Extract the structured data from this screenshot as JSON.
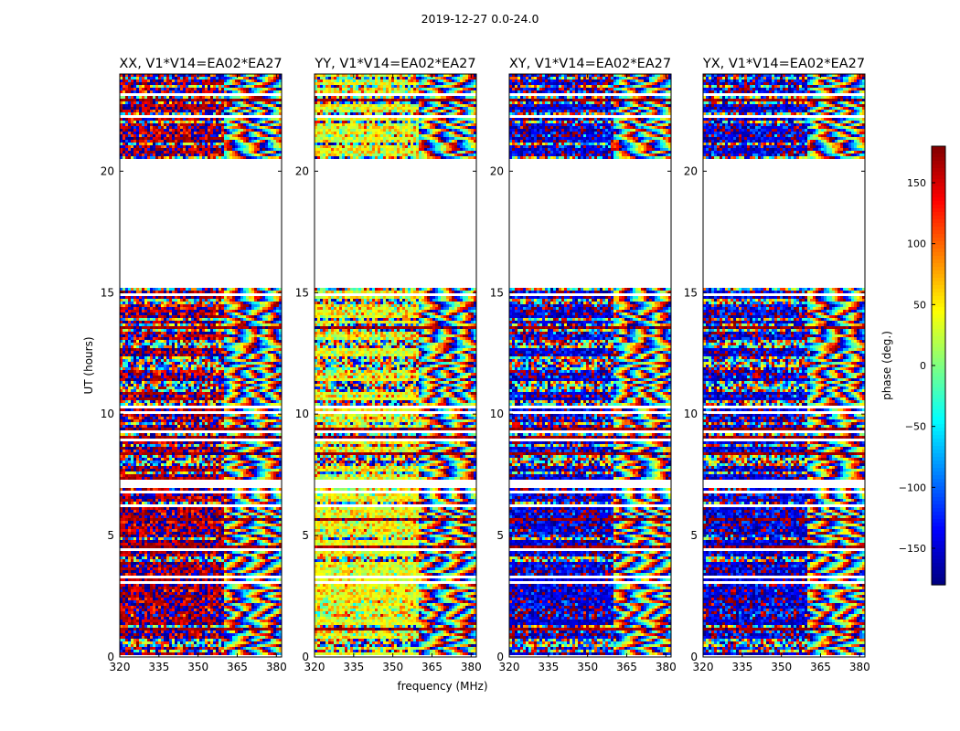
{
  "figure": {
    "suptitle": "2019-12-27 0.0-24.0"
  },
  "chart_data": {
    "type": "heatmap",
    "title": "2019-12-27 0.0-24.0",
    "xlabel": "frequency (MHz)",
    "ylabel": "UT (hours)",
    "xlim": [
      320,
      382
    ],
    "ylim": [
      0,
      24
    ],
    "xticks": [
      320,
      335,
      350,
      365,
      380
    ],
    "yticks": [
      0,
      5,
      10,
      15,
      20
    ],
    "band_split_mhz": 359,
    "blank_intervals_hours": [
      [
        15.2,
        20.5
      ],
      [
        6.95,
        7.35
      ],
      [
        0.0,
        0.1
      ]
    ],
    "panels": [
      {
        "title": "XX, V1*V14=EA02*EA27",
        "dominant_phase_deg": 170
      },
      {
        "title": "YY, V1*V14=EA02*EA27",
        "dominant_phase_deg": 40
      },
      {
        "title": "XY, V1*V14=EA02*EA27",
        "dominant_phase_deg": -150
      },
      {
        "title": "YX, V1*V14=EA02*EA27",
        "dominant_phase_deg": -150
      }
    ],
    "colorbar": {
      "label": "phase (deg.)",
      "vmin": -180,
      "vmax": 180,
      "ticks": [
        150,
        100,
        50,
        0,
        -50,
        -100,
        -150
      ],
      "tick_labels": [
        "150",
        "100",
        "50",
        "0",
        "−50",
        "−100",
        "−150"
      ],
      "colormap": "jet"
    }
  }
}
